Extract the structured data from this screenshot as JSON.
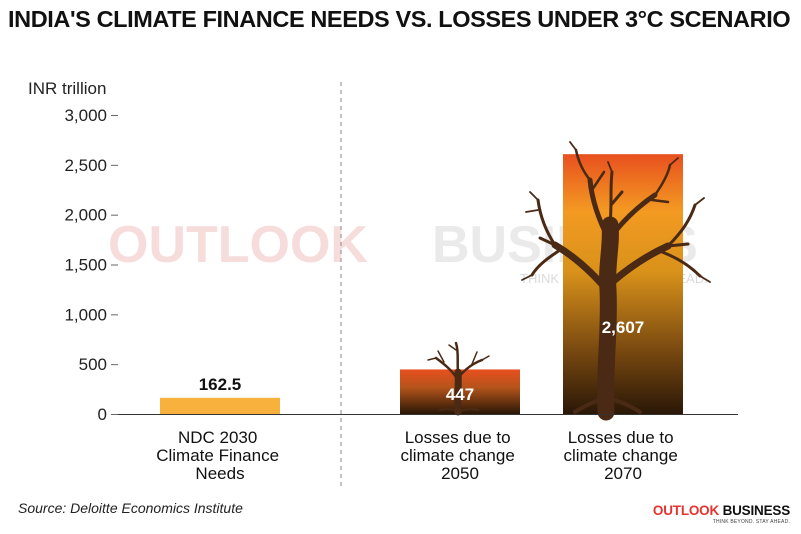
{
  "chart_data": {
    "type": "bar",
    "title": "INDIA'S CLIMATE FINANCE NEEDS VS. LOSSES UNDER 3°C SCENARIO",
    "ylabel": "INR trillion",
    "ylim": [
      0,
      3000
    ],
    "yticks": [
      0,
      500,
      1000,
      1500,
      2000,
      2500,
      3000
    ],
    "ytick_labels": [
      "0",
      "500",
      "1,000",
      "1,500",
      "2,000",
      "2,500",
      "3,000"
    ],
    "categories": [
      [
        "NDC 2030",
        "Climate Finance",
        "Needs"
      ],
      [
        "Losses due to",
        "climate change",
        "2050"
      ],
      [
        "Losses due to",
        "climate change",
        "2070"
      ]
    ],
    "values": [
      162.5,
      447,
      2607
    ],
    "value_labels": [
      "162.5",
      "447",
      "2,607"
    ],
    "grid": false,
    "legend": "none",
    "colors": {
      "needs_bar": "#f7b13c",
      "loss_bar_top": "#e8501f",
      "loss_bar_mid": "#f2a31f",
      "loss_bar_bottom": "#2a1707",
      "tree": "#4a2a14"
    }
  },
  "watermark": {
    "brand_a": "OUTLOOK",
    "brand_b": "BUSINESS",
    "tagline": "THINK BEYOND. STAY AHEAD."
  },
  "source": "Source: Deloitte Economics Institute",
  "logo": {
    "brand_a": "OUTLOOK",
    "brand_b": "BUSINESS",
    "tagline": "THINK BEYOND. STAY AHEAD."
  }
}
